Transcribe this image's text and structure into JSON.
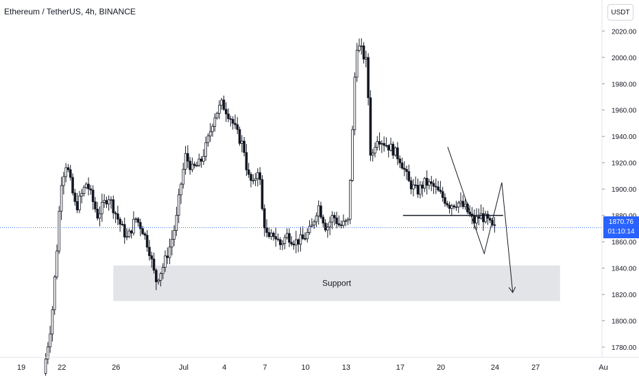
{
  "header": {
    "symbol": "Ethereum / TetherUS, 4h, BINANCE",
    "currency": "USDT"
  },
  "last_price": {
    "price": "1870.76",
    "countdown": "01:10:14"
  },
  "colors": {
    "candle": "#131722",
    "grid": "#e0e3eb",
    "axis_text": "#131722",
    "support_zone": "#e3e4e8",
    "price_line": "#2962ff",
    "price_tag_bg": "#2962ff",
    "drawing": "#131722",
    "background": "#ffffff"
  },
  "chart_data": {
    "type": "candlestick",
    "title": "Ethereum / TetherUS, 4h, BINANCE",
    "xlabel": "",
    "ylabel": "",
    "x_ticks": [
      "19",
      "22",
      "26",
      "Jul",
      "4",
      "7",
      "10",
      "13",
      "17",
      "20",
      "24",
      "27",
      "Au"
    ],
    "x_tick_days": [
      19,
      22,
      26,
      31,
      34,
      37,
      40,
      43,
      47,
      50,
      54,
      57,
      62
    ],
    "y_ticks": [
      "1780.00",
      "1800.00",
      "1820.00",
      "1840.00",
      "1860.00",
      "1880.00",
      "1900.00",
      "1920.00",
      "1940.00",
      "1960.00",
      "1980.00",
      "2000.00",
      "2020.00"
    ],
    "ylim": [
      1767,
      2029
    ],
    "last_price": 1870.76,
    "grid": false,
    "anchors": [
      [
        20.8,
        1760
      ],
      [
        21.4,
        1800
      ],
      [
        21.8,
        1855
      ],
      [
        22.1,
        1905
      ],
      [
        22.5,
        1920
      ],
      [
        23.2,
        1885
      ],
      [
        24.0,
        1905
      ],
      [
        24.8,
        1880
      ],
      [
        25.6,
        1895
      ],
      [
        26.4,
        1875
      ],
      [
        27.0,
        1862
      ],
      [
        27.6,
        1878
      ],
      [
        28.1,
        1870
      ],
      [
        28.6,
        1855
      ],
      [
        29.1,
        1830
      ],
      [
        29.6,
        1840
      ],
      [
        30.2,
        1858
      ],
      [
        30.6,
        1875
      ],
      [
        30.9,
        1900
      ],
      [
        31.3,
        1925
      ],
      [
        31.8,
        1915
      ],
      [
        32.4,
        1920
      ],
      [
        32.9,
        1935
      ],
      [
        33.4,
        1955
      ],
      [
        34.0,
        1965
      ],
      [
        34.6,
        1955
      ],
      [
        35.2,
        1940
      ],
      [
        35.6,
        1932
      ],
      [
        35.9,
        1910
      ],
      [
        36.3,
        1903
      ],
      [
        36.7,
        1918
      ],
      [
        37.0,
        1880
      ],
      [
        37.4,
        1860
      ],
      [
        37.8,
        1866
      ],
      [
        38.3,
        1858
      ],
      [
        38.8,
        1865
      ],
      [
        39.4,
        1860
      ],
      [
        40.0,
        1862
      ],
      [
        40.6,
        1870
      ],
      [
        41.1,
        1888
      ],
      [
        41.7,
        1870
      ],
      [
        42.2,
        1880
      ],
      [
        42.7,
        1872
      ],
      [
        43.3,
        1875
      ],
      [
        43.6,
        1935
      ],
      [
        43.9,
        2010
      ],
      [
        44.3,
        2005
      ],
      [
        44.7,
        1995
      ],
      [
        45.0,
        1920
      ],
      [
        45.4,
        1940
      ],
      [
        46.0,
        1935
      ],
      [
        46.6,
        1930
      ],
      [
        47.2,
        1922
      ],
      [
        47.8,
        1905
      ],
      [
        48.4,
        1898
      ],
      [
        49.0,
        1905
      ],
      [
        49.6,
        1902
      ],
      [
        50.2,
        1895
      ],
      [
        50.8,
        1888
      ],
      [
        51.4,
        1890
      ],
      [
        52.0,
        1885
      ],
      [
        52.6,
        1875
      ],
      [
        53.1,
        1880
      ],
      [
        53.6,
        1876
      ],
      [
        54.0,
        1870
      ]
    ],
    "annotations": [
      {
        "type": "zone",
        "label": "Support",
        "from_day": 25.8,
        "to_day": 58.8,
        "y_low": 1815,
        "y_high": 1842
      },
      {
        "type": "hline",
        "from_day": 47.2,
        "to_day": 54.6,
        "y": 1880
      },
      {
        "type": "path",
        "points": [
          [
            50.5,
            1932
          ],
          [
            53.2,
            1851
          ],
          [
            54.5,
            1905
          ],
          [
            55.3,
            1822
          ]
        ],
        "arrow": true
      }
    ]
  }
}
